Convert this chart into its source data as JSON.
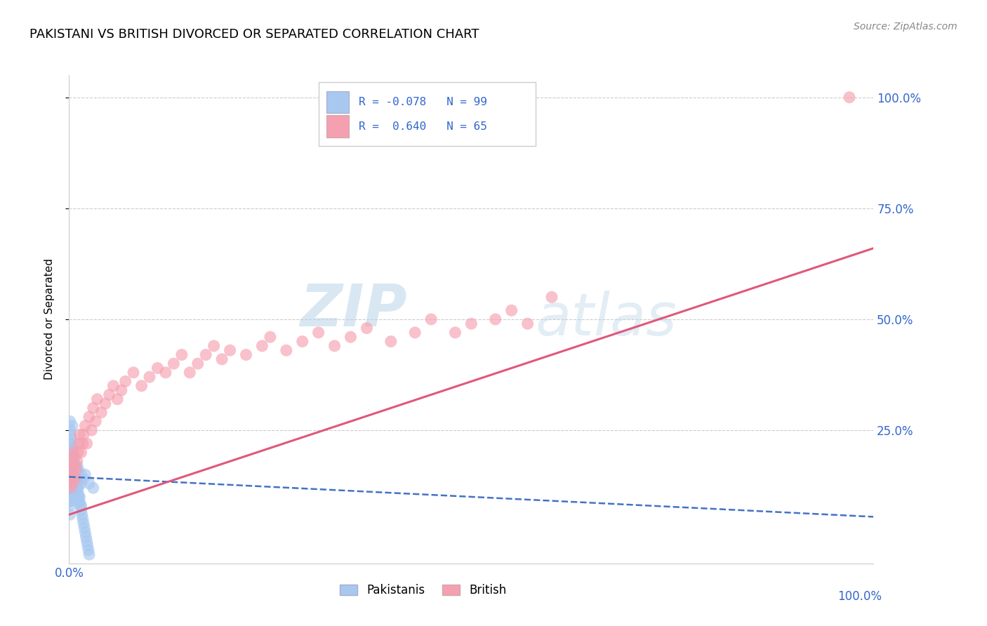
{
  "title": "PAKISTANI VS BRITISH DIVORCED OR SEPARATED CORRELATION CHART",
  "source": "Source: ZipAtlas.com",
  "ylabel": "Divorced or Separated",
  "ytick_labels": [
    "100.0%",
    "75.0%",
    "50.0%",
    "25.0%"
  ],
  "ytick_positions": [
    1.0,
    0.75,
    0.5,
    0.25
  ],
  "watermark_zip": "ZIP",
  "watermark_atlas": "atlas",
  "blue_color": "#a8c8f0",
  "pink_color": "#f5a0b0",
  "blue_line_color": "#4472c4",
  "pink_line_color": "#e05878",
  "xlim": [
    0,
    1
  ],
  "ylim": [
    -0.05,
    1.05
  ],
  "pakistani_x": [
    0.001,
    0.001,
    0.001,
    0.001,
    0.001,
    0.001,
    0.001,
    0.001,
    0.001,
    0.001,
    0.002,
    0.002,
    0.002,
    0.002,
    0.002,
    0.002,
    0.002,
    0.002,
    0.002,
    0.003,
    0.003,
    0.003,
    0.003,
    0.003,
    0.003,
    0.003,
    0.004,
    0.004,
    0.004,
    0.004,
    0.004,
    0.004,
    0.005,
    0.005,
    0.005,
    0.005,
    0.005,
    0.006,
    0.006,
    0.006,
    0.006,
    0.007,
    0.007,
    0.007,
    0.008,
    0.008,
    0.008,
    0.009,
    0.009,
    0.01,
    0.01,
    0.01,
    0.012,
    0.012,
    0.015,
    0.015,
    0.018,
    0.02,
    0.025,
    0.03,
    0.001,
    0.001,
    0.001,
    0.002,
    0.002,
    0.003,
    0.003,
    0.004,
    0.004,
    0.005,
    0.006,
    0.007,
    0.008,
    0.009,
    0.01,
    0.011,
    0.012,
    0.013,
    0.014,
    0.015,
    0.016,
    0.017,
    0.018,
    0.019,
    0.02,
    0.021,
    0.022,
    0.023,
    0.024,
    0.025,
    0.003,
    0.005,
    0.007,
    0.009,
    0.011,
    0.013,
    0.015
  ],
  "pakistani_y": [
    0.12,
    0.14,
    0.16,
    0.18,
    0.1,
    0.08,
    0.06,
    0.13,
    0.11,
    0.09,
    0.15,
    0.17,
    0.13,
    0.11,
    0.09,
    0.2,
    0.18,
    0.16,
    0.14,
    0.14,
    0.16,
    0.12,
    0.1,
    0.18,
    0.2,
    0.22,
    0.13,
    0.15,
    0.11,
    0.17,
    0.19,
    0.21,
    0.14,
    0.16,
    0.12,
    0.18,
    0.1,
    0.15,
    0.13,
    0.17,
    0.11,
    0.14,
    0.16,
    0.12,
    0.15,
    0.13,
    0.17,
    0.14,
    0.16,
    0.13,
    0.15,
    0.17,
    0.14,
    0.16,
    0.13,
    0.15,
    0.14,
    0.15,
    0.13,
    0.12,
    0.25,
    0.27,
    0.22,
    0.24,
    0.19,
    0.23,
    0.21,
    0.26,
    0.18,
    0.17,
    0.16,
    0.15,
    0.14,
    0.13,
    0.12,
    0.11,
    0.1,
    0.09,
    0.08,
    0.07,
    0.06,
    0.05,
    0.04,
    0.03,
    0.02,
    0.01,
    0.0,
    -0.01,
    -0.02,
    -0.03,
    0.2,
    0.18,
    0.16,
    0.14,
    0.12,
    0.1,
    0.08
  ],
  "british_x": [
    0.001,
    0.002,
    0.003,
    0.003,
    0.004,
    0.005,
    0.005,
    0.006,
    0.007,
    0.008,
    0.009,
    0.01,
    0.011,
    0.012,
    0.013,
    0.015,
    0.017,
    0.018,
    0.02,
    0.022,
    0.025,
    0.028,
    0.03,
    0.033,
    0.035,
    0.04,
    0.045,
    0.05,
    0.055,
    0.06,
    0.065,
    0.07,
    0.08,
    0.09,
    0.1,
    0.11,
    0.12,
    0.13,
    0.14,
    0.15,
    0.16,
    0.17,
    0.18,
    0.19,
    0.2,
    0.22,
    0.24,
    0.25,
    0.27,
    0.29,
    0.31,
    0.33,
    0.35,
    0.37,
    0.4,
    0.43,
    0.45,
    0.48,
    0.5,
    0.53,
    0.55,
    0.57,
    0.6,
    0.97
  ],
  "british_y": [
    0.14,
    0.12,
    0.16,
    0.18,
    0.13,
    0.15,
    0.2,
    0.17,
    0.19,
    0.14,
    0.16,
    0.18,
    0.2,
    0.22,
    0.24,
    0.2,
    0.22,
    0.24,
    0.26,
    0.22,
    0.28,
    0.25,
    0.3,
    0.27,
    0.32,
    0.29,
    0.31,
    0.33,
    0.35,
    0.32,
    0.34,
    0.36,
    0.38,
    0.35,
    0.37,
    0.39,
    0.38,
    0.4,
    0.42,
    0.38,
    0.4,
    0.42,
    0.44,
    0.41,
    0.43,
    0.42,
    0.44,
    0.46,
    0.43,
    0.45,
    0.47,
    0.44,
    0.46,
    0.48,
    0.45,
    0.47,
    0.5,
    0.47,
    0.49,
    0.5,
    0.52,
    0.49,
    0.55,
    1.0
  ]
}
